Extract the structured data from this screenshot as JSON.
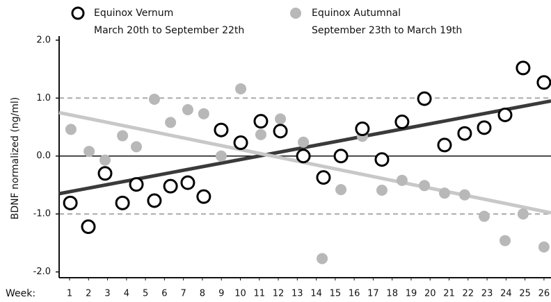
{
  "chart_data": {
    "type": "scatter",
    "y_label": "BDNF normalized (ng/ml)",
    "x_label": "Week:",
    "xlim": [
      0.45,
      26.37
    ],
    "xticks": [
      1,
      2,
      3,
      4,
      5,
      6,
      7,
      8,
      9,
      10,
      11,
      12,
      13,
      14,
      15,
      16,
      17,
      18,
      19,
      20,
      21,
      22,
      23,
      24,
      25,
      26
    ],
    "ylim": [
      -2.1,
      2.07
    ],
    "yticks": [
      {
        "value": 2,
        "label": "2.0"
      },
      {
        "value": 1,
        "label": "1.0"
      },
      {
        "value": 0,
        "label": "0.0"
      },
      {
        "value": -1,
        "label": "-1.0"
      },
      {
        "value": -2,
        "label": "-2.0"
      }
    ],
    "hlines": [
      {
        "value": 1,
        "style": "dashed"
      },
      {
        "value": 0,
        "style": "solid"
      },
      {
        "value": -1,
        "style": "dashed"
      }
    ],
    "series": [
      {
        "name": "Equinox Vernum",
        "description": "March 20th to September 22th",
        "marker": "open",
        "color": "#000000",
        "trend_color": "#3a3a3a",
        "x": [
          1.04,
          1.99,
          2.87,
          3.79,
          4.52,
          5.47,
          6.32,
          7.23,
          8.07,
          8.99,
          10.02,
          11.08,
          12.11,
          13.32,
          14.38,
          15.3,
          16.43,
          17.46,
          18.52,
          19.7,
          20.76,
          21.82,
          22.85,
          23.95,
          24.9,
          26.0
        ],
        "values": [
          -0.81,
          -1.22,
          -0.3,
          -0.81,
          -0.49,
          -0.77,
          -0.52,
          -0.46,
          -0.7,
          0.45,
          0.23,
          0.6,
          0.43,
          0.0,
          -0.37,
          0.0,
          0.47,
          -0.06,
          0.59,
          0.99,
          0.19,
          0.39,
          0.49,
          0.71,
          1.52,
          1.27
        ],
        "trend_x": [
          0.45,
          26.37
        ],
        "trend_y": [
          -0.65,
          0.95
        ]
      },
      {
        "name": "Equinox Autumnal",
        "description": "September 23th to March 19th",
        "marker": "filled",
        "color": "#b8b8b8",
        "trend_color": "#c8c8c8",
        "x": [
          1.07,
          2.03,
          2.87,
          3.79,
          4.52,
          5.47,
          6.32,
          7.23,
          8.07,
          8.99,
          10.02,
          11.08,
          12.11,
          13.32,
          14.31,
          15.3,
          16.43,
          17.46,
          18.52,
          19.7,
          20.76,
          21.82,
          22.85,
          23.95,
          24.9,
          26.0
        ],
        "values": [
          0.46,
          0.08,
          -0.07,
          0.35,
          0.16,
          0.98,
          0.58,
          0.8,
          0.73,
          0.0,
          1.16,
          0.37,
          0.64,
          0.24,
          -1.77,
          -0.58,
          0.34,
          -0.59,
          -0.42,
          -0.51,
          -0.64,
          -0.67,
          -1.04,
          -1.46,
          -1.0,
          -1.57
        ],
        "trend_x": [
          0.45,
          26.37
        ],
        "trend_y": [
          0.75,
          -0.98
        ]
      }
    ]
  }
}
